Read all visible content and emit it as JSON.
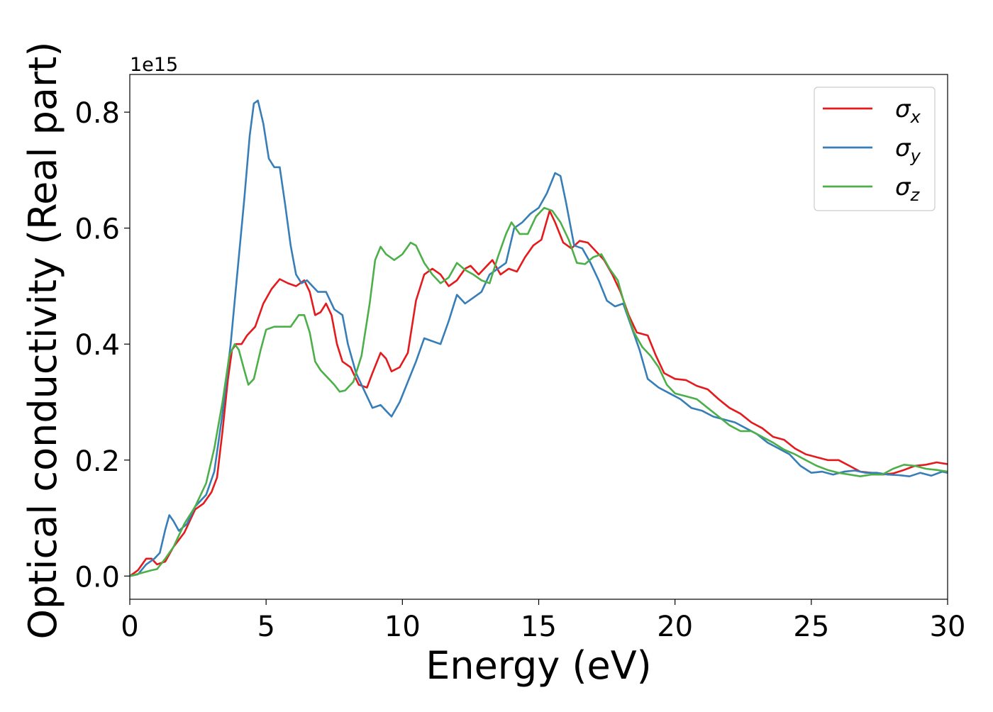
{
  "chart_data": {
    "type": "line",
    "xlabel": "Energy (eV)",
    "ylabel": "Optical conductivity (Real part)",
    "y_offset_label": "1e15",
    "xlim": [
      0,
      30
    ],
    "ylim": [
      -0.04,
      0.865
    ],
    "x_ticks": [
      0,
      5,
      10,
      15,
      20,
      25,
      30
    ],
    "y_ticks": [
      0.0,
      0.2,
      0.4,
      0.6,
      0.8
    ],
    "x_tick_labels": [
      "0",
      "5",
      "10",
      "15",
      "20",
      "25",
      "30"
    ],
    "y_tick_labels": [
      "0.0",
      "0.2",
      "0.4",
      "0.6",
      "0.8"
    ],
    "grid": false,
    "legend_position": "top-right",
    "series": [
      {
        "name": "σx",
        "symbol": "σ",
        "subscript": "x",
        "color": "#e41a1c",
        "points": [
          [
            0,
            0
          ],
          [
            0.3,
            0.01
          ],
          [
            0.6,
            0.03
          ],
          [
            0.8,
            0.03
          ],
          [
            1.0,
            0.02
          ],
          [
            1.3,
            0.025
          ],
          [
            1.6,
            0.05
          ],
          [
            2.0,
            0.075
          ],
          [
            2.4,
            0.115
          ],
          [
            2.7,
            0.125
          ],
          [
            3.0,
            0.145
          ],
          [
            3.2,
            0.17
          ],
          [
            3.4,
            0.25
          ],
          [
            3.6,
            0.34
          ],
          [
            3.75,
            0.39
          ],
          [
            3.9,
            0.4
          ],
          [
            4.1,
            0.4
          ],
          [
            4.3,
            0.415
          ],
          [
            4.6,
            0.43
          ],
          [
            4.9,
            0.47
          ],
          [
            5.2,
            0.495
          ],
          [
            5.5,
            0.512
          ],
          [
            5.8,
            0.505
          ],
          [
            6.1,
            0.5
          ],
          [
            6.4,
            0.51
          ],
          [
            6.6,
            0.49
          ],
          [
            6.8,
            0.45
          ],
          [
            7.0,
            0.455
          ],
          [
            7.2,
            0.47
          ],
          [
            7.4,
            0.45
          ],
          [
            7.6,
            0.4
          ],
          [
            7.8,
            0.37
          ],
          [
            8.1,
            0.36
          ],
          [
            8.4,
            0.33
          ],
          [
            8.7,
            0.325
          ],
          [
            8.9,
            0.35
          ],
          [
            9.2,
            0.385
          ],
          [
            9.4,
            0.375
          ],
          [
            9.6,
            0.353
          ],
          [
            9.9,
            0.36
          ],
          [
            10.2,
            0.385
          ],
          [
            10.5,
            0.475
          ],
          [
            10.8,
            0.52
          ],
          [
            11.1,
            0.53
          ],
          [
            11.4,
            0.52
          ],
          [
            11.7,
            0.5
          ],
          [
            12.0,
            0.51
          ],
          [
            12.3,
            0.53
          ],
          [
            12.5,
            0.535
          ],
          [
            12.8,
            0.52
          ],
          [
            13.1,
            0.535
          ],
          [
            13.3,
            0.545
          ],
          [
            13.6,
            0.52
          ],
          [
            13.9,
            0.53
          ],
          [
            14.2,
            0.525
          ],
          [
            14.5,
            0.55
          ],
          [
            14.8,
            0.57
          ],
          [
            15.1,
            0.58
          ],
          [
            15.4,
            0.63
          ],
          [
            15.6,
            0.61
          ],
          [
            15.9,
            0.575
          ],
          [
            16.2,
            0.565
          ],
          [
            16.5,
            0.578
          ],
          [
            16.8,
            0.575
          ],
          [
            17.1,
            0.56
          ],
          [
            17.4,
            0.545
          ],
          [
            17.7,
            0.52
          ],
          [
            18.0,
            0.49
          ],
          [
            18.3,
            0.45
          ],
          [
            18.6,
            0.42
          ],
          [
            19.0,
            0.415
          ],
          [
            19.3,
            0.38
          ],
          [
            19.6,
            0.35
          ],
          [
            20.0,
            0.34
          ],
          [
            20.4,
            0.338
          ],
          [
            20.8,
            0.328
          ],
          [
            21.2,
            0.322
          ],
          [
            21.6,
            0.305
          ],
          [
            22.0,
            0.29
          ],
          [
            22.4,
            0.28
          ],
          [
            22.8,
            0.265
          ],
          [
            23.2,
            0.255
          ],
          [
            23.6,
            0.24
          ],
          [
            24.0,
            0.235
          ],
          [
            24.4,
            0.22
          ],
          [
            24.8,
            0.21
          ],
          [
            25.2,
            0.205
          ],
          [
            25.6,
            0.2
          ],
          [
            26.0,
            0.2
          ],
          [
            26.4,
            0.19
          ],
          [
            26.8,
            0.18
          ],
          [
            27.2,
            0.178
          ],
          [
            27.6,
            0.175
          ],
          [
            28.0,
            0.177
          ],
          [
            28.4,
            0.183
          ],
          [
            28.8,
            0.19
          ],
          [
            29.2,
            0.192
          ],
          [
            29.6,
            0.196
          ],
          [
            30.0,
            0.193
          ]
        ]
      },
      {
        "name": "σy",
        "symbol": "σ",
        "subscript": "y",
        "color": "#377eb8",
        "points": [
          [
            0,
            0
          ],
          [
            0.3,
            0.003
          ],
          [
            0.6,
            0.02
          ],
          [
            0.9,
            0.03
          ],
          [
            1.1,
            0.04
          ],
          [
            1.3,
            0.08
          ],
          [
            1.45,
            0.105
          ],
          [
            1.6,
            0.095
          ],
          [
            1.8,
            0.078
          ],
          [
            2.1,
            0.09
          ],
          [
            2.4,
            0.12
          ],
          [
            2.8,
            0.14
          ],
          [
            3.1,
            0.18
          ],
          [
            3.4,
            0.28
          ],
          [
            3.7,
            0.4
          ],
          [
            4.0,
            0.55
          ],
          [
            4.2,
            0.65
          ],
          [
            4.4,
            0.76
          ],
          [
            4.55,
            0.815
          ],
          [
            4.7,
            0.82
          ],
          [
            4.9,
            0.78
          ],
          [
            5.1,
            0.72
          ],
          [
            5.3,
            0.705
          ],
          [
            5.5,
            0.705
          ],
          [
            5.7,
            0.64
          ],
          [
            5.9,
            0.57
          ],
          [
            6.1,
            0.52
          ],
          [
            6.3,
            0.505
          ],
          [
            6.5,
            0.51
          ],
          [
            6.7,
            0.5
          ],
          [
            6.9,
            0.49
          ],
          [
            7.2,
            0.49
          ],
          [
            7.5,
            0.46
          ],
          [
            7.8,
            0.45
          ],
          [
            8.0,
            0.4
          ],
          [
            8.3,
            0.35
          ],
          [
            8.6,
            0.32
          ],
          [
            8.9,
            0.29
          ],
          [
            9.2,
            0.295
          ],
          [
            9.4,
            0.285
          ],
          [
            9.6,
            0.275
          ],
          [
            9.9,
            0.3
          ],
          [
            10.2,
            0.335
          ],
          [
            10.5,
            0.37
          ],
          [
            10.8,
            0.41
          ],
          [
            11.1,
            0.405
          ],
          [
            11.4,
            0.4
          ],
          [
            11.7,
            0.44
          ],
          [
            12.0,
            0.485
          ],
          [
            12.3,
            0.47
          ],
          [
            12.6,
            0.48
          ],
          [
            12.9,
            0.49
          ],
          [
            13.2,
            0.52
          ],
          [
            13.5,
            0.53
          ],
          [
            13.8,
            0.54
          ],
          [
            14.1,
            0.6
          ],
          [
            14.4,
            0.61
          ],
          [
            14.7,
            0.625
          ],
          [
            15.0,
            0.635
          ],
          [
            15.3,
            0.66
          ],
          [
            15.6,
            0.695
          ],
          [
            15.8,
            0.69
          ],
          [
            16.0,
            0.645
          ],
          [
            16.3,
            0.57
          ],
          [
            16.6,
            0.565
          ],
          [
            16.9,
            0.54
          ],
          [
            17.2,
            0.51
          ],
          [
            17.5,
            0.475
          ],
          [
            17.8,
            0.465
          ],
          [
            18.1,
            0.47
          ],
          [
            18.4,
            0.43
          ],
          [
            18.7,
            0.39
          ],
          [
            19.0,
            0.34
          ],
          [
            19.4,
            0.325
          ],
          [
            19.8,
            0.315
          ],
          [
            20.2,
            0.305
          ],
          [
            20.6,
            0.29
          ],
          [
            21.0,
            0.285
          ],
          [
            21.4,
            0.275
          ],
          [
            21.8,
            0.27
          ],
          [
            22.2,
            0.265
          ],
          [
            22.6,
            0.255
          ],
          [
            23.0,
            0.245
          ],
          [
            23.4,
            0.23
          ],
          [
            23.8,
            0.22
          ],
          [
            24.2,
            0.21
          ],
          [
            24.6,
            0.19
          ],
          [
            25.0,
            0.178
          ],
          [
            25.4,
            0.18
          ],
          [
            25.8,
            0.175
          ],
          [
            26.2,
            0.18
          ],
          [
            26.6,
            0.182
          ],
          [
            27.0,
            0.178
          ],
          [
            27.4,
            0.178
          ],
          [
            27.8,
            0.175
          ],
          [
            28.2,
            0.174
          ],
          [
            28.6,
            0.172
          ],
          [
            29.0,
            0.178
          ],
          [
            29.4,
            0.173
          ],
          [
            29.8,
            0.18
          ],
          [
            30.0,
            0.178
          ]
        ]
      },
      {
        "name": "σz",
        "symbol": "σ",
        "subscript": "z",
        "color": "#4daf4a",
        "points": [
          [
            0,
            0
          ],
          [
            0.4,
            0.005
          ],
          [
            0.8,
            0.01
          ],
          [
            1.0,
            0.012
          ],
          [
            1.3,
            0.03
          ],
          [
            1.6,
            0.05
          ],
          [
            2.0,
            0.09
          ],
          [
            2.4,
            0.12
          ],
          [
            2.8,
            0.16
          ],
          [
            3.1,
            0.22
          ],
          [
            3.4,
            0.3
          ],
          [
            3.65,
            0.38
          ],
          [
            3.85,
            0.4
          ],
          [
            4.0,
            0.39
          ],
          [
            4.2,
            0.355
          ],
          [
            4.35,
            0.33
          ],
          [
            4.55,
            0.34
          ],
          [
            4.8,
            0.39
          ],
          [
            5.0,
            0.425
          ],
          [
            5.3,
            0.43
          ],
          [
            5.6,
            0.43
          ],
          [
            5.9,
            0.43
          ],
          [
            6.2,
            0.45
          ],
          [
            6.4,
            0.45
          ],
          [
            6.6,
            0.42
          ],
          [
            6.8,
            0.37
          ],
          [
            7.0,
            0.355
          ],
          [
            7.3,
            0.34
          ],
          [
            7.5,
            0.33
          ],
          [
            7.7,
            0.318
          ],
          [
            7.9,
            0.32
          ],
          [
            8.2,
            0.335
          ],
          [
            8.5,
            0.38
          ],
          [
            8.8,
            0.47
          ],
          [
            9.0,
            0.545
          ],
          [
            9.2,
            0.568
          ],
          [
            9.4,
            0.555
          ],
          [
            9.7,
            0.545
          ],
          [
            10.0,
            0.555
          ],
          [
            10.3,
            0.575
          ],
          [
            10.5,
            0.57
          ],
          [
            10.8,
            0.54
          ],
          [
            11.1,
            0.52
          ],
          [
            11.4,
            0.505
          ],
          [
            11.7,
            0.515
          ],
          [
            12.0,
            0.54
          ],
          [
            12.3,
            0.528
          ],
          [
            12.6,
            0.52
          ],
          [
            12.9,
            0.51
          ],
          [
            13.2,
            0.505
          ],
          [
            13.5,
            0.55
          ],
          [
            13.8,
            0.59
          ],
          [
            14.0,
            0.61
          ],
          [
            14.3,
            0.59
          ],
          [
            14.6,
            0.59
          ],
          [
            14.9,
            0.62
          ],
          [
            15.2,
            0.635
          ],
          [
            15.5,
            0.63
          ],
          [
            15.8,
            0.61
          ],
          [
            16.1,
            0.58
          ],
          [
            16.4,
            0.54
          ],
          [
            16.7,
            0.538
          ],
          [
            17.0,
            0.55
          ],
          [
            17.3,
            0.555
          ],
          [
            17.6,
            0.53
          ],
          [
            17.9,
            0.51
          ],
          [
            18.2,
            0.46
          ],
          [
            18.5,
            0.42
          ],
          [
            18.8,
            0.395
          ],
          [
            19.1,
            0.38
          ],
          [
            19.4,
            0.36
          ],
          [
            19.7,
            0.33
          ],
          [
            20.0,
            0.315
          ],
          [
            20.4,
            0.31
          ],
          [
            20.8,
            0.305
          ],
          [
            21.2,
            0.29
          ],
          [
            21.6,
            0.275
          ],
          [
            22.0,
            0.26
          ],
          [
            22.4,
            0.25
          ],
          [
            22.8,
            0.25
          ],
          [
            23.2,
            0.24
          ],
          [
            23.6,
            0.23
          ],
          [
            24.0,
            0.218
          ],
          [
            24.4,
            0.21
          ],
          [
            24.8,
            0.2
          ],
          [
            25.2,
            0.19
          ],
          [
            25.6,
            0.183
          ],
          [
            26.0,
            0.178
          ],
          [
            26.4,
            0.175
          ],
          [
            26.8,
            0.172
          ],
          [
            27.2,
            0.175
          ],
          [
            27.6,
            0.175
          ],
          [
            28.0,
            0.185
          ],
          [
            28.4,
            0.192
          ],
          [
            28.8,
            0.19
          ],
          [
            29.2,
            0.185
          ],
          [
            29.6,
            0.183
          ],
          [
            30.0,
            0.18
          ]
        ]
      }
    ]
  }
}
